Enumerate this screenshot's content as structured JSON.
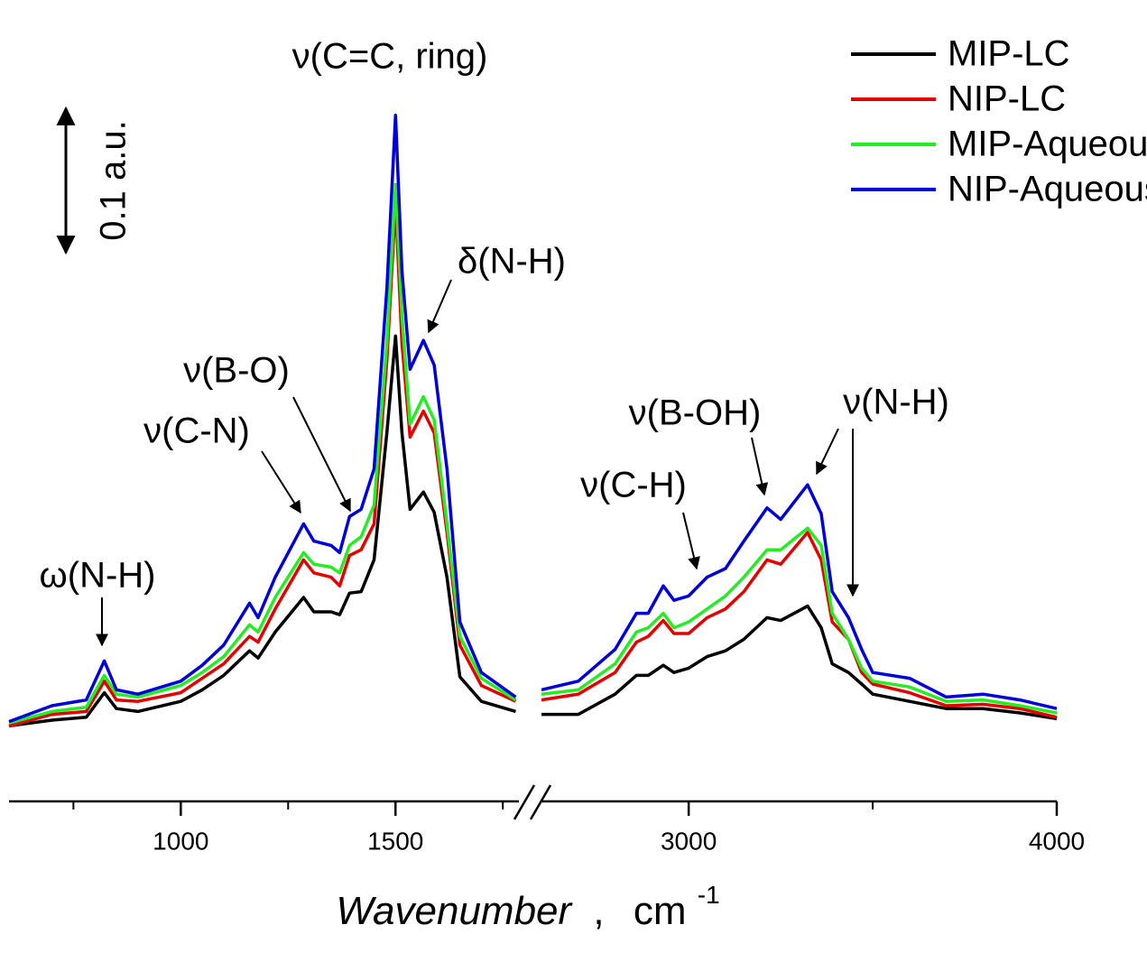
{
  "chart_data": {
    "type": "line",
    "x": [
      600,
      700,
      780,
      822,
      850,
      900,
      1000,
      1050,
      1100,
      1160,
      1180,
      1220,
      1286,
      1310,
      1350,
      1370,
      1393,
      1420,
      1450,
      1480,
      1500,
      1515,
      1534,
      1565,
      1590,
      1620,
      1650,
      1700,
      1780,
      null,
      2600,
      2700,
      2800,
      2858,
      2890,
      2931,
      2960,
      3000,
      3050,
      3100,
      3150,
      3213,
      3250,
      3323,
      3360,
      3390,
      3434,
      3470,
      3500,
      3600,
      3700,
      3800,
      3900,
      4000
    ],
    "series": [
      {
        "name": "MIP-LC",
        "color": "#000000",
        "values": [
          0.041,
          0.045,
          0.047,
          0.064,
          0.053,
          0.051,
          0.058,
          0.066,
          0.076,
          0.093,
          0.088,
          0.106,
          0.13,
          0.12,
          0.12,
          0.118,
          0.133,
          0.134,
          0.156,
          0.244,
          0.311,
          0.244,
          0.191,
          0.203,
          0.189,
          0.144,
          0.075,
          0.058,
          0.051,
          null,
          0.049,
          0.049,
          0.063,
          0.076,
          0.076,
          0.083,
          0.078,
          0.081,
          0.089,
          0.093,
          0.101,
          0.116,
          0.114,
          0.124,
          0.109,
          0.084,
          0.078,
          0.07,
          0.063,
          0.058,
          0.053,
          0.053,
          0.05,
          0.046
        ]
      },
      {
        "name": "NIP-LC",
        "color": "#e60000",
        "values": [
          0.041,
          0.049,
          0.051,
          0.072,
          0.059,
          0.058,
          0.064,
          0.074,
          0.084,
          0.103,
          0.099,
          0.122,
          0.156,
          0.147,
          0.144,
          0.138,
          0.159,
          0.163,
          0.181,
          0.294,
          0.403,
          0.306,
          0.241,
          0.259,
          0.244,
          0.175,
          0.097,
          0.069,
          0.058,
          null,
          0.059,
          0.063,
          0.078,
          0.099,
          0.103,
          0.114,
          0.105,
          0.105,
          0.116,
          0.122,
          0.134,
          0.156,
          0.153,
          0.175,
          0.156,
          0.113,
          0.101,
          0.078,
          0.07,
          0.064,
          0.055,
          0.056,
          0.053,
          0.047
        ]
      },
      {
        "name": "MIP-Aqueous",
        "color": "#22ee22",
        "values": [
          0.043,
          0.051,
          0.054,
          0.076,
          0.063,
          0.061,
          0.069,
          0.078,
          0.089,
          0.111,
          0.106,
          0.13,
          0.161,
          0.153,
          0.151,
          0.147,
          0.166,
          0.172,
          0.194,
          0.306,
          0.416,
          0.325,
          0.25,
          0.269,
          0.253,
          0.181,
          0.103,
          0.074,
          0.059,
          null,
          0.063,
          0.066,
          0.084,
          0.106,
          0.109,
          0.119,
          0.109,
          0.113,
          0.122,
          0.131,
          0.144,
          0.163,
          0.163,
          0.178,
          0.166,
          0.119,
          0.101,
          0.081,
          0.072,
          0.068,
          0.058,
          0.059,
          0.055,
          0.05
        ]
      },
      {
        "name": "NIP-Aqueous",
        "color": "#0000dd",
        "values": [
          0.044,
          0.055,
          0.059,
          0.086,
          0.066,
          0.063,
          0.072,
          0.083,
          0.097,
          0.126,
          0.116,
          0.144,
          0.181,
          0.169,
          0.166,
          0.161,
          0.186,
          0.191,
          0.219,
          0.344,
          0.464,
          0.356,
          0.288,
          0.308,
          0.291,
          0.219,
          0.113,
          0.078,
          0.061,
          null,
          0.066,
          0.072,
          0.094,
          0.119,
          0.119,
          0.138,
          0.128,
          0.131,
          0.144,
          0.15,
          0.169,
          0.192,
          0.184,
          0.208,
          0.188,
          0.134,
          0.116,
          0.094,
          0.078,
          0.074,
          0.061,
          0.063,
          0.059,
          0.053
        ]
      }
    ],
    "x_segments": [
      {
        "xlim": [
          600,
          1800
        ],
        "xticks": [
          1000,
          1500
        ],
        "xminor_ticks": [
          750,
          1250,
          1750
        ]
      },
      {
        "xlim": [
          2600,
          4000
        ],
        "xticks": [
          3000,
          4000
        ],
        "xminor_ticks": [
          3500
        ]
      }
    ],
    "ylim": [
      0,
      0.5
    ],
    "xlabel": "Wavenumber",
    "xlabel_sep": ",",
    "xlabel_unit": "cm",
    "xlabel_unit_power": "-1",
    "scale_bar": {
      "value": 0.1,
      "label": "0.1 a.u."
    },
    "legend": "upper right",
    "annotations": [
      "ω(N-H)",
      "ν(C-N)",
      "ν(B-O)",
      "ν(C=C, ring)",
      "δ(N-H)",
      "ν(C-H)",
      "ν(B-OH)",
      "ν(N-H)"
    ]
  }
}
